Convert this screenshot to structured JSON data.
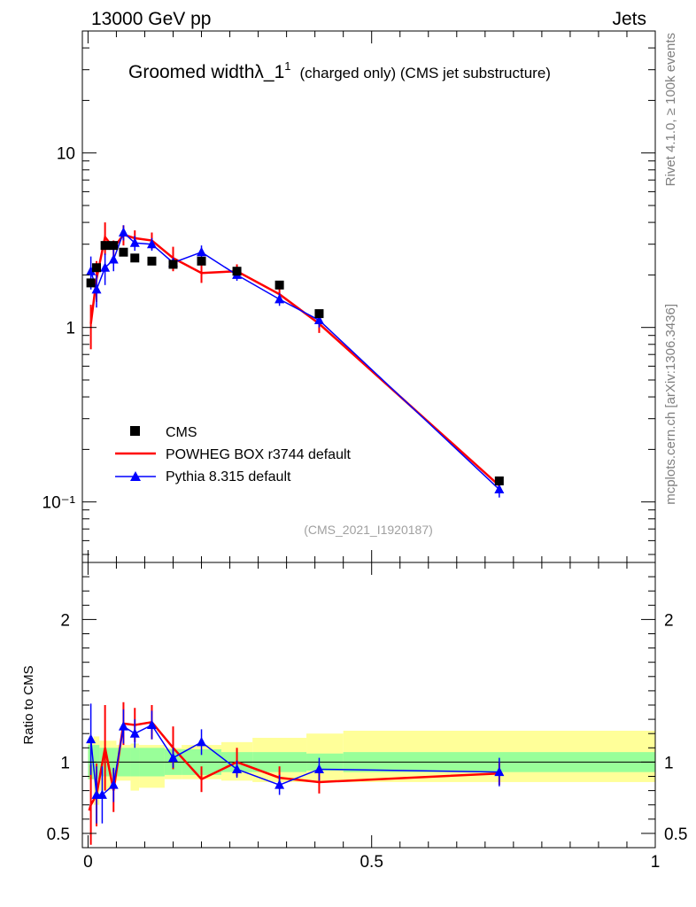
{
  "header": {
    "left": "13000 GeV pp",
    "right": "Jets"
  },
  "title": {
    "main": "Groomed width",
    "lambda": "λ_1",
    "superscript": "1",
    "sub": "(charged only) (CMS jet substructure)"
  },
  "side_labels": {
    "rivet": "Rivet 4.1.0, ≥ 100k events",
    "mcplots": "mcplots.cern.ch [arXiv:1306.3436]"
  },
  "analysis_tag": "(CMS_2021_I1920187)",
  "colors": {
    "data": "#000000",
    "powheg": "#ff0000",
    "pythia": "#0000ff",
    "band_inner": "#99ff99",
    "band_outer": "#ffff99"
  },
  "chart_data": [
    {
      "type": "line",
      "panel": "main",
      "yscale": "log",
      "xlim": [
        -0.01,
        1.0
      ],
      "ylim": [
        0.045,
        50
      ],
      "y_tick_labels": [
        "10⁻¹",
        "1",
        "10"
      ],
      "y_tick_values": [
        0.1,
        1,
        10
      ],
      "legend": [
        "CMS",
        "POWHEG BOX r3744 default",
        "Pythia 8.315 default"
      ],
      "legend_position": "lower-left",
      "series": [
        {
          "name": "CMS",
          "style": "markers",
          "x": [
            0.005,
            0.015,
            0.03,
            0.045,
            0.0625,
            0.0825,
            0.1125,
            0.15,
            0.2,
            0.2625,
            0.3375,
            0.4075,
            0.725
          ],
          "y": [
            1.8,
            2.2,
            2.95,
            2.95,
            2.7,
            2.5,
            2.4,
            2.3,
            2.4,
            2.1,
            1.75,
            1.2,
            0.132
          ]
        },
        {
          "name": "POWHEG BOX r3744 default",
          "style": "line",
          "x": [
            0.005,
            0.015,
            0.03,
            0.045,
            0.0625,
            0.0825,
            0.1125,
            0.15,
            0.2,
            0.2625,
            0.3375,
            0.4075,
            0.725
          ],
          "y": [
            1.05,
            1.9,
            3.3,
            2.85,
            3.4,
            3.25,
            3.15,
            2.5,
            2.05,
            2.1,
            1.55,
            1.05,
            0.124
          ],
          "yerr": [
            0.3,
            0.5,
            0.7,
            0.3,
            0.45,
            0.35,
            0.35,
            0.4,
            0.25,
            0.2,
            0.15,
            0.12,
            0.012
          ]
        },
        {
          "name": "Pythia 8.315 default",
          "style": "line-triangles",
          "x": [
            0.005,
            0.015,
            0.03,
            0.045,
            0.0625,
            0.0825,
            0.1125,
            0.15,
            0.2,
            0.2625,
            0.3375,
            0.4075,
            0.725
          ],
          "y": [
            2.1,
            1.65,
            2.2,
            2.45,
            3.5,
            3.05,
            3.0,
            2.35,
            2.7,
            2.0,
            1.45,
            1.1,
            0.118
          ],
          "yerr": [
            0.45,
            0.35,
            0.45,
            0.35,
            0.35,
            0.3,
            0.25,
            0.15,
            0.25,
            0.15,
            0.12,
            0.1,
            0.012
          ]
        }
      ]
    },
    {
      "type": "line",
      "panel": "ratio",
      "ylabel": "Ratio to CMS",
      "xlabel": "",
      "xlim": [
        -0.01,
        1.0
      ],
      "ylim": [
        0.4,
        2.4
      ],
      "y_tick_labels": [
        "0.5",
        "1",
        "2"
      ],
      "y_tick_values": [
        0.5,
        1,
        2
      ],
      "x_tick_labels": [
        "0",
        "0.5",
        "1"
      ],
      "x_tick_values": [
        0,
        0.5,
        1
      ],
      "bins": [
        0,
        0.01,
        0.02,
        0.04,
        0.05,
        0.075,
        0.09,
        0.135,
        0.165,
        0.235,
        0.29,
        0.385,
        0.45,
        1.0
      ],
      "band_inner_half": [
        0.12,
        0.12,
        0.1,
        0.1,
        0.1,
        0.1,
        0.1,
        0.09,
        0.09,
        0.07,
        0.07,
        0.06,
        0.07
      ],
      "band_outer_low": [
        0.12,
        0.3,
        0.2,
        0.14,
        0.13,
        0.2,
        0.18,
        0.12,
        0.12,
        0.13,
        0.14,
        0.14,
        0.14
      ],
      "band_outer_high": [
        0.15,
        0.18,
        0.15,
        0.15,
        0.12,
        0.13,
        0.12,
        0.1,
        0.12,
        0.14,
        0.17,
        0.2,
        0.22
      ],
      "series": [
        {
          "name": "POWHEG BOX r3744 default",
          "x": [
            0.002,
            0.005,
            0.015,
            0.03,
            0.045,
            0.0625,
            0.0825,
            0.1125,
            0.15,
            0.2,
            0.2625,
            0.3375,
            0.4075,
            0.725
          ],
          "y": [
            0.66,
            0.7,
            0.77,
            1.1,
            0.8,
            1.27,
            1.26,
            1.28,
            1.1,
            0.88,
            1.0,
            0.89,
            0.86,
            0.92
          ],
          "yerr": [
            0.0,
            0.28,
            0.22,
            0.3,
            0.15,
            0.15,
            0.12,
            0.12,
            0.15,
            0.09,
            0.1,
            0.08,
            0.08,
            0.08
          ]
        },
        {
          "name": "Pythia 8.315 default",
          "x": [
            0.005,
            0.015,
            0.025,
            0.045,
            0.0625,
            0.0825,
            0.1125,
            0.15,
            0.2,
            0.2625,
            0.3375,
            0.4075,
            0.725
          ],
          "y": [
            1.16,
            0.77,
            0.77,
            0.84,
            1.25,
            1.2,
            1.26,
            1.03,
            1.14,
            0.95,
            0.84,
            0.95,
            0.93
          ],
          "yerr": [
            0.25,
            0.2,
            0.2,
            0.12,
            0.12,
            0.1,
            0.1,
            0.07,
            0.09,
            0.06,
            0.07,
            0.08,
            0.1
          ]
        }
      ]
    }
  ]
}
